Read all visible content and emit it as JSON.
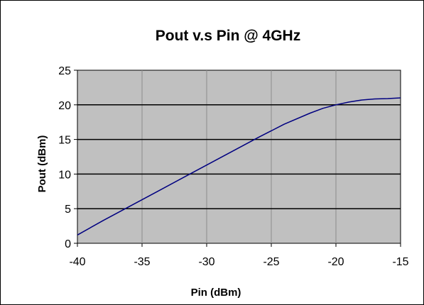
{
  "chart_data": {
    "type": "line",
    "title": "Pout v.s Pin @ 4GHz",
    "xlabel": "Pin (dBm)",
    "ylabel": "Pout (dBm)",
    "xlim": [
      -40,
      -15
    ],
    "ylim": [
      0,
      25
    ],
    "x_ticks": [
      "-40",
      "-35",
      "-30",
      "-25",
      "-20",
      "-15"
    ],
    "y_ticks": [
      "0",
      "5",
      "10",
      "15",
      "20",
      "25"
    ],
    "grid": true,
    "legend": "none",
    "plot_background": "#c0c0c0",
    "series": [
      {
        "color": "#000080",
        "x": [
          -40,
          -38,
          -36,
          -34,
          -32,
          -30,
          -28,
          -26,
          -24,
          -22,
          -21,
          -20,
          -19,
          -18,
          -17,
          -16,
          -15
        ],
        "y": [
          1.2,
          3.3,
          5.3,
          7.3,
          9.3,
          11.3,
          13.3,
          15.3,
          17.2,
          18.8,
          19.5,
          20.0,
          20.4,
          20.7,
          20.85,
          20.9,
          21.0
        ]
      }
    ]
  }
}
